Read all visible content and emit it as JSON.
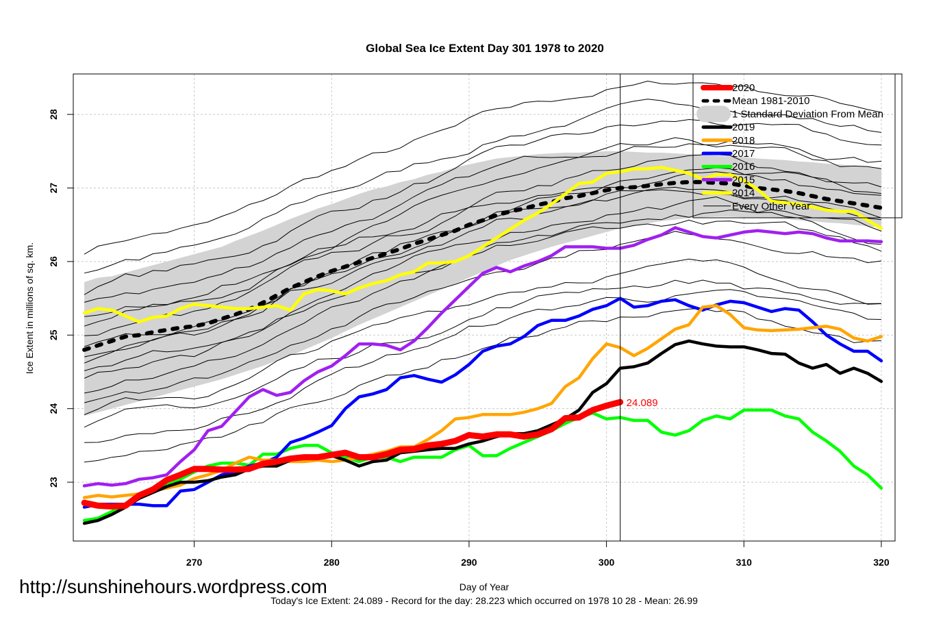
{
  "chart_data": {
    "type": "line",
    "title": "Global Sea Ice Extent Day 301 1978 to 2020",
    "xlabel": "Day of Year",
    "ylabel": "Ice Extent in millions of sq. km.",
    "xlim": [
      261.2,
      321
    ],
    "ylim": [
      22.2,
      28.55
    ],
    "x_ticks": [
      270,
      280,
      290,
      300,
      310,
      320
    ],
    "y_ticks": [
      23,
      24,
      25,
      26,
      27,
      28
    ],
    "grid": true,
    "legend_position": "top-right",
    "current_day": 301,
    "current_day_label": "24.089",
    "current_day_label_color": "#ff0000",
    "x": [
      262,
      263,
      264,
      265,
      266,
      267,
      268,
      269,
      270,
      271,
      272,
      273,
      274,
      275,
      276,
      277,
      278,
      279,
      280,
      281,
      282,
      283,
      284,
      285,
      286,
      287,
      288,
      289,
      290,
      291,
      292,
      293,
      294,
      295,
      296,
      297,
      298,
      299,
      300,
      301,
      302,
      303,
      304,
      305,
      306,
      307,
      308,
      309,
      310,
      311,
      312,
      313,
      314,
      315,
      316,
      317,
      318,
      319,
      320
    ],
    "std_band": {
      "name": "1 Standard Deviation From Mean",
      "color": "#d3d3d3",
      "upper": [
        25.72,
        25.78,
        25.8,
        25.85,
        25.9,
        25.95,
        26.0,
        26.05,
        26.1,
        26.15,
        26.2,
        26.28,
        26.35,
        26.42,
        26.5,
        26.58,
        26.65,
        26.72,
        26.78,
        26.85,
        26.92,
        26.98,
        27.02,
        27.08,
        27.12,
        27.18,
        27.22,
        27.28,
        27.32,
        27.36,
        27.4,
        27.42,
        27.44,
        27.46,
        27.47,
        27.48,
        27.48,
        27.49,
        27.5,
        27.5,
        27.49,
        27.48,
        27.48,
        27.47,
        27.46,
        27.45,
        27.44,
        27.43,
        27.42,
        27.4,
        27.39,
        27.38,
        27.36,
        27.35,
        27.33,
        27.32,
        27.3,
        27.29,
        27.27
      ],
      "lower": [
        23.9,
        23.95,
        24.0,
        24.05,
        24.1,
        24.15,
        24.2,
        24.25,
        24.3,
        24.35,
        24.4,
        24.46,
        24.52,
        24.58,
        24.65,
        24.72,
        24.8,
        24.88,
        24.96,
        25.05,
        25.14,
        25.22,
        25.3,
        25.38,
        25.46,
        25.54,
        25.62,
        25.7,
        25.78,
        25.86,
        25.94,
        26.02,
        26.08,
        26.14,
        26.2,
        26.25,
        26.3,
        26.35,
        26.4,
        26.45,
        26.48,
        26.52,
        26.55,
        26.57,
        26.59,
        26.6,
        26.61,
        26.61,
        26.6,
        26.6,
        26.59,
        26.58,
        26.56,
        26.55,
        26.53,
        26.52,
        26.5,
        26.48,
        26.46
      ]
    },
    "mean": {
      "name": "Mean 1981-2010",
      "color": "#000000",
      "values": [
        24.8,
        24.86,
        24.92,
        24.98,
        25.0,
        25.04,
        25.07,
        25.1,
        25.12,
        25.16,
        25.22,
        25.28,
        25.35,
        25.44,
        25.54,
        25.64,
        25.72,
        25.8,
        25.87,
        25.93,
        25.99,
        26.05,
        26.11,
        26.17,
        26.24,
        26.3,
        26.36,
        26.42,
        26.5,
        26.56,
        26.63,
        26.68,
        26.72,
        26.77,
        26.81,
        26.86,
        26.89,
        26.93,
        26.97,
        27.0,
        27.01,
        27.03,
        27.05,
        27.07,
        27.08,
        27.08,
        27.07,
        27.06,
        27.03,
        27.0,
        26.98,
        26.96,
        26.93,
        26.89,
        26.85,
        26.82,
        26.79,
        26.76,
        26.73
      ]
    },
    "series": [
      {
        "name": "2020",
        "color": "#ff0000",
        "width": "thick",
        "values": [
          22.72,
          22.68,
          22.67,
          22.68,
          22.82,
          22.9,
          23.03,
          23.1,
          23.18,
          23.18,
          23.17,
          23.17,
          23.18,
          23.25,
          23.28,
          23.32,
          23.34,
          23.34,
          23.37,
          23.4,
          23.34,
          23.34,
          23.38,
          23.44,
          23.45,
          23.5,
          23.52,
          23.56,
          23.64,
          23.62,
          23.65,
          23.65,
          23.62,
          23.65,
          23.72,
          23.87,
          23.88,
          23.98,
          24.04,
          24.089,
          null,
          null,
          null,
          null,
          null,
          null,
          null,
          null,
          null,
          null,
          null,
          null,
          null,
          null,
          null,
          null,
          null,
          null,
          null
        ]
      },
      {
        "name": "2019",
        "color": "#000000",
        "width": "medium",
        "values": [
          22.44,
          22.48,
          22.56,
          22.66,
          22.78,
          22.86,
          22.94,
          23.0,
          23.0,
          23.02,
          23.07,
          23.1,
          23.18,
          23.22,
          23.22,
          23.3,
          23.34,
          23.34,
          23.36,
          23.3,
          23.22,
          23.28,
          23.3,
          23.4,
          23.42,
          23.44,
          23.46,
          23.46,
          23.52,
          23.56,
          23.62,
          23.66,
          23.66,
          23.7,
          23.78,
          23.86,
          23.98,
          24.22,
          24.34,
          24.55,
          24.57,
          24.62,
          24.75,
          24.87,
          24.92,
          24.88,
          24.85,
          24.84,
          24.84,
          24.8,
          24.75,
          24.74,
          24.62,
          24.55,
          24.6,
          24.48,
          24.55,
          24.48,
          24.37
        ]
      },
      {
        "name": "2018",
        "color": "#ffa500",
        "width": "medium",
        "values": [
          22.79,
          22.82,
          22.8,
          22.82,
          22.84,
          22.88,
          22.92,
          22.96,
          23.05,
          23.1,
          23.16,
          23.26,
          23.34,
          23.3,
          23.3,
          23.28,
          23.28,
          23.3,
          23.28,
          23.3,
          23.34,
          23.38,
          23.42,
          23.48,
          23.48,
          23.58,
          23.7,
          23.86,
          23.88,
          23.92,
          23.92,
          23.92,
          23.95,
          24.0,
          24.07,
          24.3,
          24.42,
          24.68,
          24.88,
          24.83,
          24.72,
          24.82,
          24.95,
          25.08,
          25.14,
          25.38,
          25.4,
          25.28,
          25.1,
          25.07,
          25.06,
          25.07,
          25.08,
          25.1,
          25.12,
          25.08,
          24.96,
          24.92,
          24.98
        ]
      },
      {
        "name": "2017",
        "color": "#0000ff",
        "width": "medium",
        "values": [
          22.66,
          22.7,
          22.7,
          22.7,
          22.7,
          22.68,
          22.68,
          22.88,
          22.9,
          23.0,
          23.1,
          23.14,
          23.22,
          23.26,
          23.34,
          23.54,
          23.6,
          23.68,
          23.77,
          24.0,
          24.16,
          24.2,
          24.26,
          24.42,
          24.45,
          24.4,
          24.36,
          24.46,
          24.6,
          24.78,
          24.85,
          24.88,
          24.98,
          25.13,
          25.2,
          25.2,
          25.26,
          25.35,
          25.4,
          25.5,
          25.38,
          25.4,
          25.46,
          25.48,
          25.4,
          25.34,
          25.41,
          25.46,
          25.44,
          25.38,
          25.32,
          25.36,
          25.34,
          25.18,
          25.0,
          24.88,
          24.78,
          24.78,
          24.65
        ]
      },
      {
        "name": "2016",
        "color": "#00ff00",
        "width": "medium",
        "values": [
          22.48,
          22.51,
          22.6,
          22.7,
          22.8,
          22.88,
          22.96,
          23.04,
          23.14,
          23.22,
          23.26,
          23.26,
          23.23,
          23.38,
          23.38,
          23.46,
          23.5,
          23.5,
          23.4,
          23.34,
          23.28,
          23.34,
          23.34,
          23.28,
          23.34,
          23.34,
          23.34,
          23.44,
          23.5,
          23.36,
          23.36,
          23.46,
          23.54,
          23.62,
          23.7,
          23.8,
          23.88,
          23.94,
          23.86,
          23.88,
          23.84,
          23.84,
          23.68,
          23.64,
          23.7,
          23.84,
          23.9,
          23.86,
          23.98,
          23.98,
          23.98,
          23.9,
          23.86,
          23.68,
          23.56,
          23.42,
          23.22,
          23.1,
          22.92
        ]
      },
      {
        "name": "2015",
        "color": "#a020f0",
        "width": "medium",
        "values": [
          22.95,
          22.98,
          22.96,
          22.98,
          23.04,
          23.06,
          23.1,
          23.28,
          23.44,
          23.7,
          23.76,
          23.96,
          24.16,
          24.26,
          24.18,
          24.22,
          24.38,
          24.5,
          24.58,
          24.72,
          24.88,
          24.88,
          24.86,
          24.8,
          24.92,
          25.1,
          25.3,
          25.48,
          25.66,
          25.84,
          25.92,
          25.86,
          25.94,
          26.0,
          26.08,
          26.2,
          26.2,
          26.2,
          26.18,
          26.18,
          26.22,
          26.3,
          26.36,
          26.46,
          26.4,
          26.34,
          26.32,
          26.36,
          26.4,
          26.42,
          26.4,
          26.38,
          26.4,
          26.38,
          26.32,
          26.28,
          26.28,
          26.28,
          26.27
        ]
      },
      {
        "name": "2014",
        "color": "#ffff00",
        "width": "medium",
        "values": [
          25.3,
          25.36,
          25.34,
          25.26,
          25.18,
          25.24,
          25.26,
          25.36,
          25.42,
          25.4,
          25.38,
          25.36,
          25.36,
          25.38,
          25.4,
          25.34,
          25.56,
          25.62,
          25.6,
          25.56,
          25.64,
          25.7,
          25.74,
          25.82,
          25.86,
          25.98,
          25.98,
          26.0,
          26.08,
          26.2,
          26.32,
          26.44,
          26.56,
          26.66,
          26.78,
          26.92,
          27.06,
          27.08,
          27.2,
          27.22,
          27.26,
          27.26,
          27.28,
          27.24,
          27.2,
          27.12,
          27.18,
          27.18,
          27.1,
          26.98,
          26.82,
          26.8,
          26.78,
          26.74,
          26.7,
          26.68,
          26.68,
          26.56,
          26.45
        ]
      },
      {
        "name": "Every Other Year",
        "color": "#000000",
        "width": "thin",
        "values": []
      }
    ],
    "other_years_note": "thin black lines for every other year 1978-2012"
  },
  "legend": {
    "items": [
      {
        "label": "2020",
        "color": "#ff0000",
        "style": "thick-line"
      },
      {
        "label": "Mean 1981-2010",
        "color": "#000000",
        "style": "dotted"
      },
      {
        "label": "1 Standard Deviation From Mean",
        "color": "#d3d3d3",
        "style": "band"
      },
      {
        "label": "2019",
        "color": "#000000",
        "style": "line"
      },
      {
        "label": "2018",
        "color": "#ffa500",
        "style": "line"
      },
      {
        "label": "2017",
        "color": "#0000ff",
        "style": "line"
      },
      {
        "label": "2016",
        "color": "#00ff00",
        "style": "line"
      },
      {
        "label": "2015",
        "color": "#a020f0",
        "style": "line"
      },
      {
        "label": "2014",
        "color": "#ffff00",
        "style": "line"
      },
      {
        "label": "Every Other Year",
        "color": "#000000",
        "style": "thin-line"
      }
    ]
  },
  "watermark": "http://sunshinehours.wordpress.com",
  "footer": "Today's Ice Extent: 24.089  - Record for the day: 28.223 which occurred on 1978 10 28  - Mean: 26.99"
}
